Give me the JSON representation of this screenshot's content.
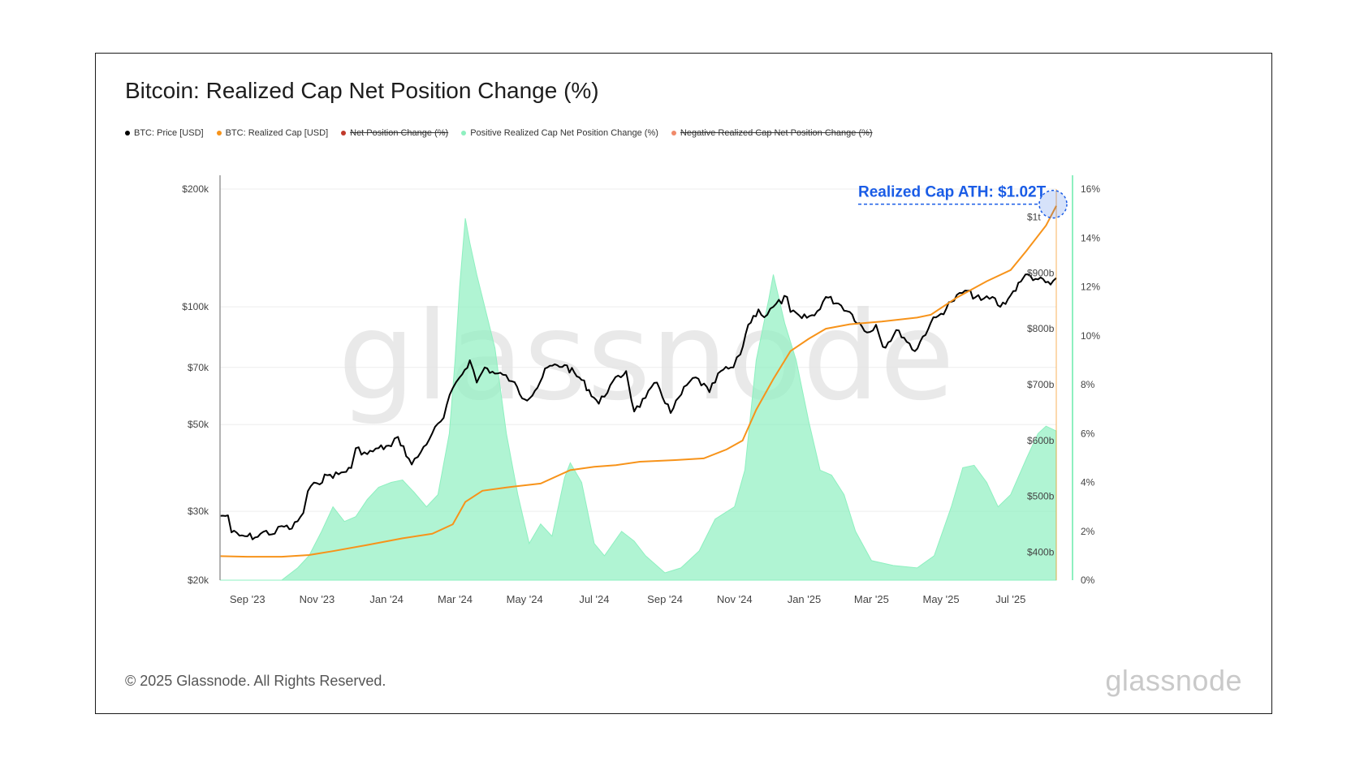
{
  "title": "Bitcoin: Realized Cap Net Position Change (%)",
  "footer": {
    "copyright": "© 2025 Glassnode. All Rights Reserved.",
    "logo": "glassnode"
  },
  "watermark": "glassnode",
  "colors": {
    "price": "#000000",
    "realized_cap": "#f7931a",
    "net_position": "#c0392b",
    "positive": "#8ef0c0",
    "negative": "#f08a6a",
    "annotation": "#1a5ce6",
    "right_axis": "#8ef0c0"
  },
  "legend": [
    {
      "label": "BTC: Price [USD]",
      "color": "#000000",
      "strike": false
    },
    {
      "label": "BTC: Realized Cap [USD]",
      "color": "#f7931a",
      "strike": false
    },
    {
      "label": "Net Position Change (%)",
      "color": "#c0392b",
      "strike": true
    },
    {
      "label": "Positive Realized Cap Net Position Change (%)",
      "color": "#8ef0c0",
      "strike": false
    },
    {
      "label": "Negative Realized Cap Net Position Change (%)",
      "color": "#f08a6a",
      "strike": true
    }
  ],
  "chart_data": {
    "type": "line",
    "x_range": [
      "2023-08-08",
      "2025-08-10"
    ],
    "x_ticks": [
      {
        "date": "2023-09-01",
        "label": "Sep '23"
      },
      {
        "date": "2023-11-01",
        "label": "Nov '23"
      },
      {
        "date": "2024-01-01",
        "label": "Jan '24"
      },
      {
        "date": "2024-03-01",
        "label": "Mar '24"
      },
      {
        "date": "2024-05-01",
        "label": "May '24"
      },
      {
        "date": "2024-07-01",
        "label": "Jul '24"
      },
      {
        "date": "2024-09-01",
        "label": "Sep '24"
      },
      {
        "date": "2024-11-01",
        "label": "Nov '24"
      },
      {
        "date": "2025-01-01",
        "label": "Jan '25"
      },
      {
        "date": "2025-03-01",
        "label": "Mar '25"
      },
      {
        "date": "2025-05-01",
        "label": "May '25"
      },
      {
        "date": "2025-07-01",
        "label": "Jul '25"
      }
    ],
    "price_axis": {
      "scale": "log",
      "range": [
        20000,
        200000
      ],
      "ticks": [
        {
          "value": 200000,
          "label": "$200k"
        },
        {
          "value": 100000,
          "label": "$100k"
        },
        {
          "value": 70000,
          "label": "$70k"
        },
        {
          "value": 50000,
          "label": "$50k"
        },
        {
          "value": 30000,
          "label": "$30k"
        },
        {
          "value": 20000,
          "label": "$20k"
        }
      ]
    },
    "realized_cap_axis": {
      "unit": "b",
      "range": [
        350,
        1050
      ],
      "ticks": [
        {
          "value": 1000,
          "label": "$1t"
        },
        {
          "value": 900,
          "label": "$900b"
        },
        {
          "value": 800,
          "label": "$800b"
        },
        {
          "value": 700,
          "label": "$700b"
        },
        {
          "value": 600,
          "label": "$600b"
        },
        {
          "value": 500,
          "label": "$500b"
        },
        {
          "value": 400,
          "label": "$400b"
        }
      ]
    },
    "percent_axis": {
      "range": [
        0,
        16
      ],
      "ticks": [
        {
          "value": 16,
          "label": "16%"
        },
        {
          "value": 14,
          "label": "14%"
        },
        {
          "value": 12,
          "label": "12%"
        },
        {
          "value": 10,
          "label": "10%"
        },
        {
          "value": 8,
          "label": "8%"
        },
        {
          "value": 6,
          "label": "6%"
        },
        {
          "value": 4,
          "label": "4%"
        },
        {
          "value": 2,
          "label": "2%"
        },
        {
          "value": 0,
          "label": "0%"
        }
      ]
    },
    "series": [
      {
        "name": "BTC: Price [USD]",
        "points": [
          [
            "2023-08-08",
            29200
          ],
          [
            "2023-08-15",
            29300
          ],
          [
            "2023-08-18",
            26500
          ],
          [
            "2023-08-25",
            26000
          ],
          [
            "2023-09-01",
            25900
          ],
          [
            "2023-09-10",
            25800
          ],
          [
            "2023-09-15",
            26600
          ],
          [
            "2023-09-25",
            26300
          ],
          [
            "2023-10-01",
            27500
          ],
          [
            "2023-10-10",
            27100
          ],
          [
            "2023-10-20",
            29700
          ],
          [
            "2023-10-24",
            33800
          ],
          [
            "2023-11-01",
            35400
          ],
          [
            "2023-11-10",
            37100
          ],
          [
            "2023-11-20",
            37300
          ],
          [
            "2023-12-01",
            38700
          ],
          [
            "2023-12-05",
            43500
          ],
          [
            "2023-12-15",
            42000
          ],
          [
            "2023-12-25",
            43500
          ],
          [
            "2024-01-05",
            44000
          ],
          [
            "2024-01-11",
            46500
          ],
          [
            "2024-01-23",
            39500
          ],
          [
            "2024-01-31",
            42500
          ],
          [
            "2024-02-10",
            47500
          ],
          [
            "2024-02-20",
            52000
          ],
          [
            "2024-02-28",
            62000
          ],
          [
            "2024-03-05",
            66000
          ],
          [
            "2024-03-14",
            73000
          ],
          [
            "2024-03-20",
            64000
          ],
          [
            "2024-03-27",
            70000
          ],
          [
            "2024-04-05",
            67500
          ],
          [
            "2024-04-12",
            67000
          ],
          [
            "2024-04-20",
            64500
          ],
          [
            "2024-05-01",
            58000
          ],
          [
            "2024-05-10",
            61000
          ],
          [
            "2024-05-21",
            70000
          ],
          [
            "2024-06-05",
            71000
          ],
          [
            "2024-06-20",
            65000
          ],
          [
            "2024-07-05",
            56500
          ],
          [
            "2024-07-15",
            63000
          ],
          [
            "2024-07-29",
            68500
          ],
          [
            "2024-08-05",
            54000
          ],
          [
            "2024-08-15",
            58500
          ],
          [
            "2024-08-25",
            64000
          ],
          [
            "2024-09-06",
            53500
          ],
          [
            "2024-09-20",
            63000
          ],
          [
            "2024-09-28",
            66000
          ],
          [
            "2024-10-10",
            60500
          ],
          [
            "2024-10-20",
            68500
          ],
          [
            "2024-10-31",
            70000
          ],
          [
            "2024-11-06",
            75500
          ],
          [
            "2024-11-13",
            90000
          ],
          [
            "2024-11-22",
            98500
          ],
          [
            "2024-11-27",
            94000
          ],
          [
            "2024-12-05",
            100000
          ],
          [
            "2024-12-17",
            106000
          ],
          [
            "2024-12-20",
            97000
          ],
          [
            "2024-12-30",
            93500
          ],
          [
            "2025-01-10",
            95000
          ],
          [
            "2025-01-20",
            106000
          ],
          [
            "2025-01-31",
            102000
          ],
          [
            "2025-02-10",
            97000
          ],
          [
            "2025-02-25",
            86000
          ],
          [
            "2025-03-05",
            90000
          ],
          [
            "2025-03-11",
            79000
          ],
          [
            "2025-03-25",
            87000
          ],
          [
            "2025-04-08",
            77000
          ],
          [
            "2025-04-22",
            91000
          ],
          [
            "2025-05-01",
            96000
          ],
          [
            "2025-05-10",
            103000
          ],
          [
            "2025-05-22",
            110000
          ],
          [
            "2025-06-05",
            104000
          ],
          [
            "2025-06-15",
            106000
          ],
          [
            "2025-06-22",
            100000
          ],
          [
            "2025-07-01",
            107000
          ],
          [
            "2025-07-10",
            116000
          ],
          [
            "2025-07-14",
            121000
          ],
          [
            "2025-07-25",
            117500
          ],
          [
            "2025-08-05",
            114000
          ],
          [
            "2025-08-10",
            118500
          ]
        ]
      },
      {
        "name": "BTC: Realized Cap [USD]",
        "points": [
          [
            "2023-08-08",
            393
          ],
          [
            "2023-09-01",
            392
          ],
          [
            "2023-10-01",
            392
          ],
          [
            "2023-10-25",
            395
          ],
          [
            "2023-11-15",
            402
          ],
          [
            "2023-12-15",
            413
          ],
          [
            "2024-01-15",
            425
          ],
          [
            "2024-02-10",
            433
          ],
          [
            "2024-02-28",
            450
          ],
          [
            "2024-03-10",
            490
          ],
          [
            "2024-03-25",
            510
          ],
          [
            "2024-04-15",
            516
          ],
          [
            "2024-05-15",
            523
          ],
          [
            "2024-06-10",
            547
          ],
          [
            "2024-07-01",
            553
          ],
          [
            "2024-07-20",
            556
          ],
          [
            "2024-08-10",
            562
          ],
          [
            "2024-09-10",
            565
          ],
          [
            "2024-10-05",
            568
          ],
          [
            "2024-10-25",
            584
          ],
          [
            "2024-11-08",
            600
          ],
          [
            "2024-11-20",
            655
          ],
          [
            "2024-12-05",
            710
          ],
          [
            "2024-12-20",
            760
          ],
          [
            "2025-01-05",
            782
          ],
          [
            "2025-01-20",
            800
          ],
          [
            "2025-02-10",
            808
          ],
          [
            "2025-03-10",
            813
          ],
          [
            "2025-04-10",
            820
          ],
          [
            "2025-04-22",
            825
          ],
          [
            "2025-05-15",
            856
          ],
          [
            "2025-06-10",
            885
          ],
          [
            "2025-07-01",
            905
          ],
          [
            "2025-07-15",
            940
          ],
          [
            "2025-08-01",
            985
          ],
          [
            "2025-08-10",
            1020
          ]
        ]
      },
      {
        "name": "Positive Realized Cap Net Position Change (%)",
        "points": [
          [
            "2023-08-08",
            0.0
          ],
          [
            "2023-10-01",
            0.0
          ],
          [
            "2023-10-15",
            0.5
          ],
          [
            "2023-10-25",
            1.0
          ],
          [
            "2023-11-05",
            2.0
          ],
          [
            "2023-11-15",
            3.0
          ],
          [
            "2023-11-25",
            2.4
          ],
          [
            "2023-12-05",
            2.6
          ],
          [
            "2023-12-15",
            3.3
          ],
          [
            "2023-12-25",
            3.8
          ],
          [
            "2024-01-05",
            4.0
          ],
          [
            "2024-01-15",
            4.1
          ],
          [
            "2024-01-25",
            3.6
          ],
          [
            "2024-02-05",
            3.0
          ],
          [
            "2024-02-15",
            3.5
          ],
          [
            "2024-02-25",
            6.0
          ],
          [
            "2024-03-01",
            9.0
          ],
          [
            "2024-03-05",
            12.0
          ],
          [
            "2024-03-10",
            14.8
          ],
          [
            "2024-03-14",
            13.8
          ],
          [
            "2024-03-20",
            12.5
          ],
          [
            "2024-03-28",
            11.0
          ],
          [
            "2024-04-05",
            9.5
          ],
          [
            "2024-04-15",
            6.0
          ],
          [
            "2024-04-25",
            3.5
          ],
          [
            "2024-05-05",
            1.5
          ],
          [
            "2024-05-15",
            2.3
          ],
          [
            "2024-05-25",
            1.8
          ],
          [
            "2024-06-05",
            4.2
          ],
          [
            "2024-06-10",
            4.8
          ],
          [
            "2024-06-20",
            4.0
          ],
          [
            "2024-07-01",
            1.5
          ],
          [
            "2024-07-10",
            1.0
          ],
          [
            "2024-07-25",
            2.0
          ],
          [
            "2024-08-05",
            1.6
          ],
          [
            "2024-08-15",
            1.0
          ],
          [
            "2024-09-01",
            0.3
          ],
          [
            "2024-09-15",
            0.5
          ],
          [
            "2024-10-01",
            1.2
          ],
          [
            "2024-10-15",
            2.5
          ],
          [
            "2024-11-01",
            3.0
          ],
          [
            "2024-11-10",
            4.5
          ],
          [
            "2024-11-20",
            9.0
          ],
          [
            "2024-12-01",
            11.5
          ],
          [
            "2024-12-05",
            12.5
          ],
          [
            "2024-12-15",
            10.5
          ],
          [
            "2024-12-25",
            9.0
          ],
          [
            "2025-01-05",
            6.5
          ],
          [
            "2025-01-15",
            4.5
          ],
          [
            "2025-01-25",
            4.3
          ],
          [
            "2025-02-05",
            3.5
          ],
          [
            "2025-02-15",
            2.0
          ],
          [
            "2025-03-01",
            0.8
          ],
          [
            "2025-03-20",
            0.6
          ],
          [
            "2025-04-10",
            0.5
          ],
          [
            "2025-04-25",
            1.0
          ],
          [
            "2025-05-10",
            3.0
          ],
          [
            "2025-05-20",
            4.6
          ],
          [
            "2025-05-30",
            4.7
          ],
          [
            "2025-06-10",
            4.0
          ],
          [
            "2025-06-20",
            3.0
          ],
          [
            "2025-07-01",
            3.5
          ],
          [
            "2025-07-15",
            5.0
          ],
          [
            "2025-07-25",
            6.0
          ],
          [
            "2025-08-01",
            6.3
          ],
          [
            "2025-08-10",
            6.1
          ]
        ]
      }
    ],
    "annotation": {
      "text": "Realized Cap ATH: $1.02T",
      "date": "2025-08-10",
      "value": 1020
    }
  }
}
